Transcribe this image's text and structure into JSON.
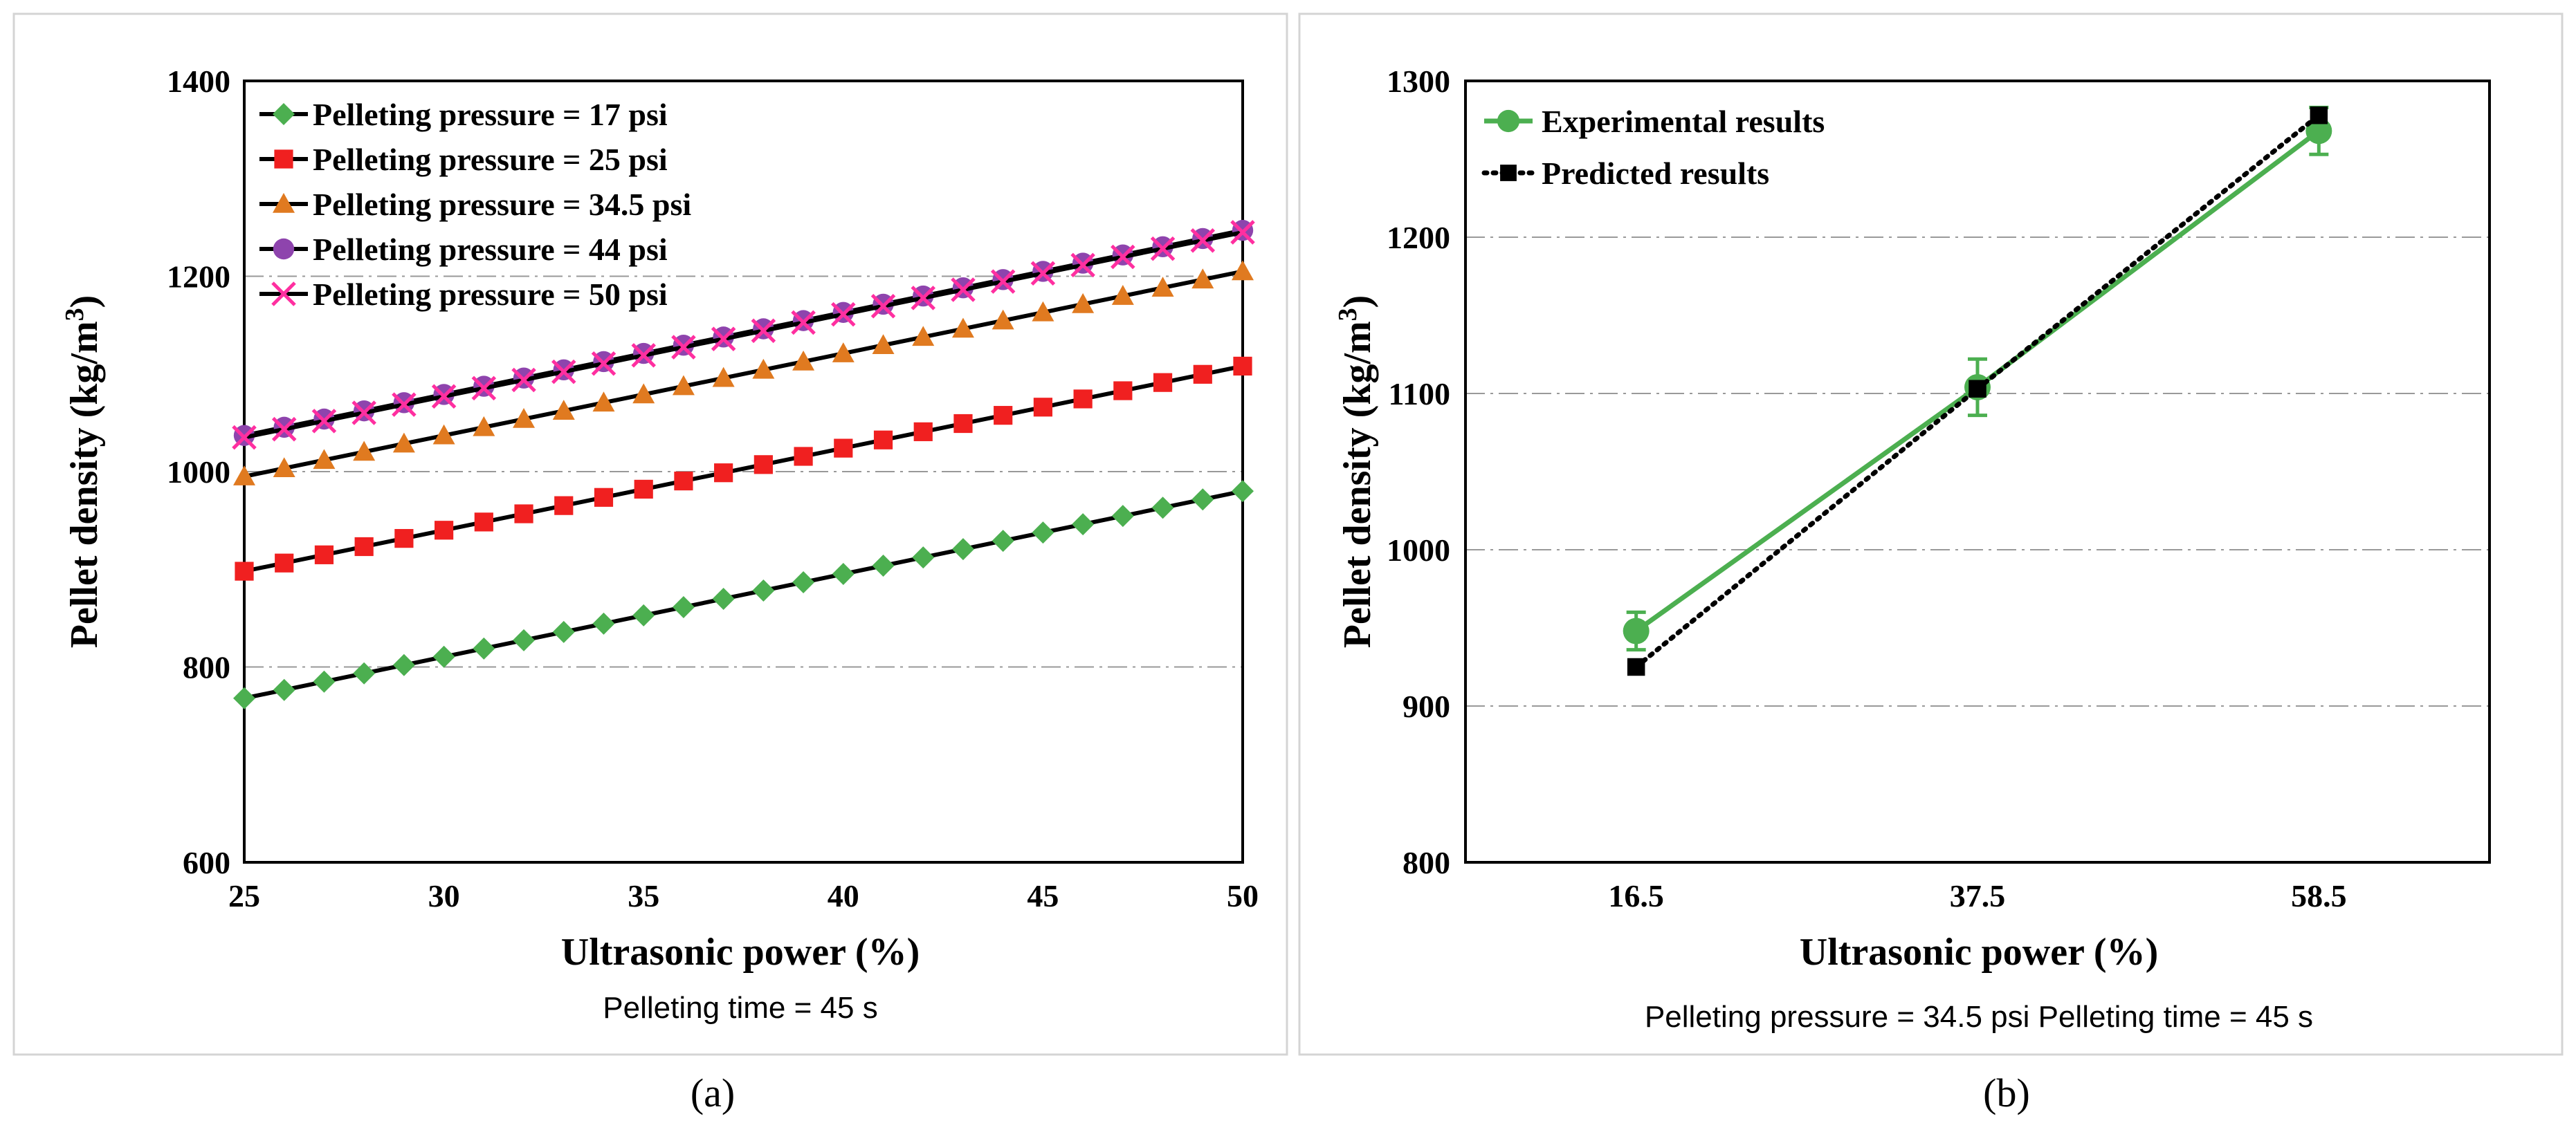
{
  "chart_data": [
    {
      "type": "line",
      "panel_label": "(a)",
      "title": "",
      "xlabel": "Ultrasonic power (%)",
      "ylabel_main": "Pellet density (kg/m",
      "ylabel_sup": "3",
      "ylabel_close": ")",
      "xlim": [
        25,
        50
      ],
      "ylim": [
        600,
        1400
      ],
      "xticks": [
        "25",
        "30",
        "35",
        "40",
        "45",
        "50"
      ],
      "yticks": [
        "600",
        "800",
        "1000",
        "1200",
        "1400"
      ],
      "note": "Pelleting time = 45 s",
      "legend_position": "top-left",
      "series": [
        {
          "name": "Pelleting pressure = 17 psi",
          "color": "#4caf50",
          "marker": "diamond",
          "x_start": 25,
          "x_end": 50,
          "y_start": 768,
          "y_end": 980
        },
        {
          "name": "Pelleting pressure = 25 psi",
          "color": "#f02020",
          "marker": "square",
          "x_start": 25,
          "x_end": 50,
          "y_start": 898,
          "y_end": 1108
        },
        {
          "name": "Pelleting pressure = 34.5 psi",
          "color": "#e07a20",
          "marker": "triangle",
          "x_start": 25,
          "x_end": 50,
          "y_start": 995,
          "y_end": 1205
        },
        {
          "name": "Pelleting pressure = 44 psi",
          "color": "#8e44ad",
          "marker": "circle",
          "x_start": 25,
          "x_end": 50,
          "y_start": 1037,
          "y_end": 1247
        },
        {
          "name": "Pelleting pressure = 50 psi",
          "color": "#ff2fa0",
          "marker": "x",
          "x_start": 25,
          "x_end": 50,
          "y_start": 1035,
          "y_end": 1245
        }
      ]
    },
    {
      "type": "line",
      "panel_label": "(b)",
      "title": "",
      "xlabel": "Ultrasonic power (%)",
      "ylabel_main": "Pellet density (kg/m",
      "ylabel_sup": "3",
      "ylabel_close": ")",
      "categories": [
        "16.5",
        "37.5",
        "58.5"
      ],
      "ylim": [
        800,
        1300
      ],
      "yticks": [
        "800",
        "900",
        "1000",
        "1100",
        "1200",
        "1300"
      ],
      "note": "Pelleting pressure = 34.5 psi   Pelleting time = 45 s",
      "legend_position": "top-left",
      "series": [
        {
          "name": "Experimental results",
          "color": "#4caf50",
          "marker": "circle",
          "style": "solid",
          "values": [
            948,
            1104,
            1268
          ],
          "errors": [
            12,
            18,
            15
          ]
        },
        {
          "name": "Predicted results",
          "color": "#000000",
          "marker": "square",
          "style": "dotted",
          "values": [
            925,
            1103,
            1278
          ]
        }
      ]
    }
  ]
}
